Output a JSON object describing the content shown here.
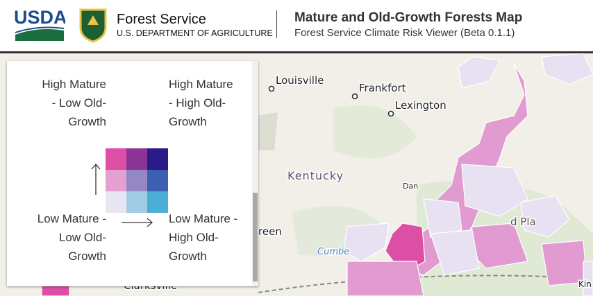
{
  "header": {
    "agency_logo": "USDA",
    "agency": "Forest Service",
    "department": "U.S. DEPARTMENT OF AGRICULTURE",
    "title": "Mature and Old-Growth Forests Map",
    "subtitle": "Forest Service Climate Risk Viewer (Beta 0.1.1)"
  },
  "legend": {
    "top_left": "High Mature - Low Old-Growth",
    "top_right": "High Mature - High Old-Growth",
    "bottom_left": "Low Mature - Low Old-Growth",
    "bottom_right": "Low Mature - High Old-Growth",
    "colors": [
      [
        "#dd4fa6",
        "#8a3596",
        "#2d1a89"
      ],
      [
        "#e3a0d0",
        "#9487c2",
        "#3d5fb0"
      ],
      [
        "#e9e5f2",
        "#a0cde3",
        "#4baed4"
      ]
    ]
  },
  "map": {
    "labels": [
      "Louisville",
      "Frankfort",
      "Lexington",
      "Kentucky",
      "Dan",
      "reen",
      "Cumbe",
      "d Pla",
      "Clarksville",
      "Kin"
    ]
  }
}
